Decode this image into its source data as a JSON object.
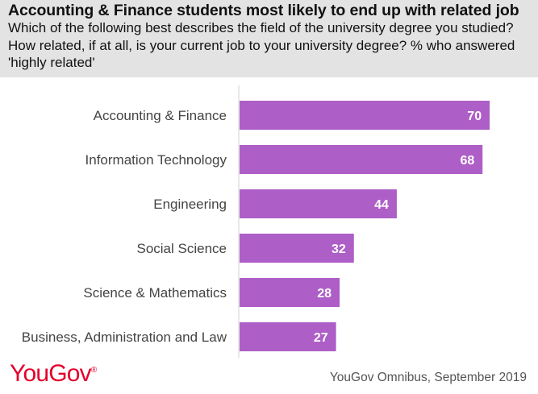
{
  "header": {
    "title": "Accounting & Finance students most likely to end up with related job",
    "subtitle": "Which of the following best describes the field of the university degree you studied? How related, if at all, is your current job to your university degree? % who answered 'highly related'"
  },
  "chart_data": {
    "type": "bar",
    "orientation": "horizontal",
    "categories": [
      "Accounting & Finance",
      "Information Technology",
      "Engineering",
      "Social Science",
      "Science & Mathematics",
      "Business, Administration and Law"
    ],
    "values": [
      70,
      68,
      44,
      32,
      28,
      27
    ],
    "xlim": [
      0,
      100
    ],
    "bar_color": "#ae5ec7",
    "grid": false
  },
  "footer": {
    "logo": "YouGov",
    "logo_mark": "®",
    "source": "YouGov Omnibus, September 2019"
  }
}
